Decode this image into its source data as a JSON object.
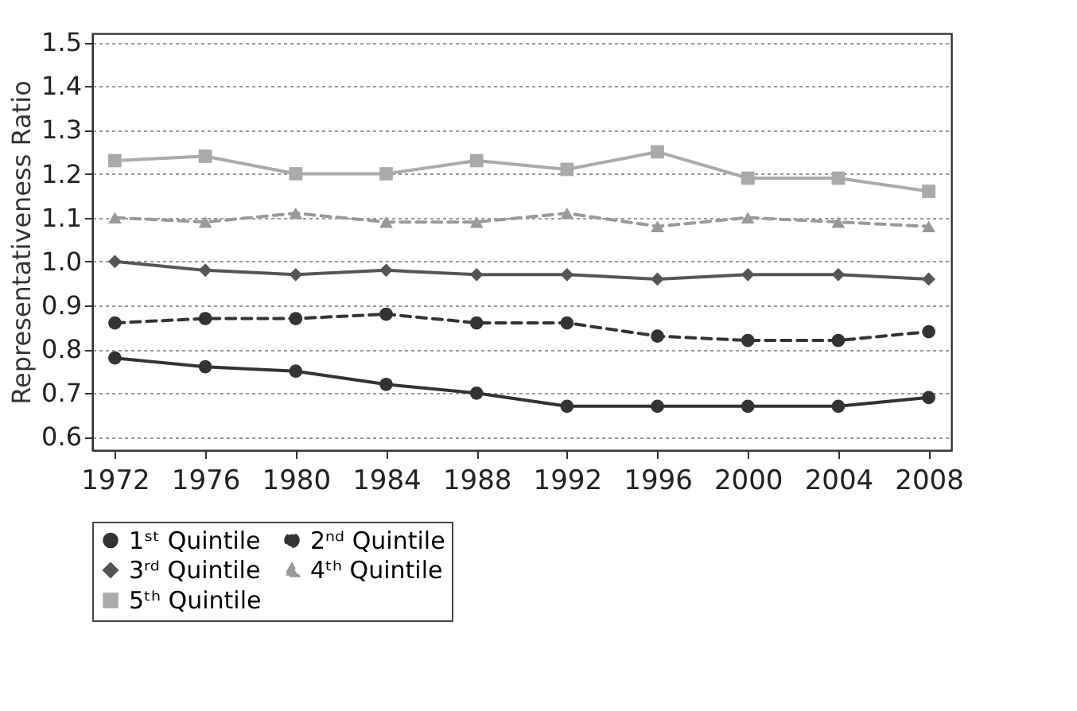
{
  "chart_data": {
    "type": "line",
    "ylabel": "Representativeness Ratio",
    "categories": [
      "1972",
      "1976",
      "1980",
      "1984",
      "1988",
      "1992",
      "1996",
      "2000",
      "2004",
      "2008"
    ],
    "ylim": [
      0.57,
      1.52
    ],
    "yticks": [
      0.6,
      0.7,
      0.8,
      0.9,
      {
        "value": 1,
        "label": "1.0"
      },
      1.1,
      1.2,
      1.3,
      1.4,
      1.5
    ],
    "grid": "y",
    "legend": "bottom",
    "series": [
      {
        "name": "1ˢᵗ Quintile",
        "color": "#333333",
        "marker": "circle",
        "line_style": "solid",
        "values": [
          0.78,
          0.76,
          0.75,
          0.72,
          0.7,
          0.67,
          0.67,
          0.67,
          0.67,
          0.69
        ]
      },
      {
        "name": "2ⁿᵈ Quintile",
        "color": "#333333",
        "marker": "circle",
        "line_style": "dashed",
        "values": [
          0.86,
          0.87,
          0.87,
          0.88,
          0.86,
          0.86,
          0.83,
          0.82,
          0.82,
          0.84
        ]
      },
      {
        "name": "3ʳᵈ Quintile",
        "color": "#555555",
        "marker": "diamond",
        "line_style": "solid",
        "values": [
          1.0,
          0.98,
          0.97,
          0.98,
          0.97,
          0.97,
          0.96,
          0.97,
          0.97,
          0.96
        ]
      },
      {
        "name": "4ᵗʰ Quintile",
        "color": "#999999",
        "marker": "triangle",
        "line_style": "dashed",
        "values": [
          1.1,
          1.09,
          1.11,
          1.09,
          1.09,
          1.11,
          1.08,
          1.1,
          1.09,
          1.08
        ]
      },
      {
        "name": "5ᵗʰ Quintile",
        "color": "#aaaaaa",
        "marker": "square",
        "line_style": "solid",
        "values": [
          1.23,
          1.24,
          1.2,
          1.2,
          1.23,
          1.21,
          1.25,
          1.19,
          1.19,
          1.16
        ]
      }
    ]
  }
}
